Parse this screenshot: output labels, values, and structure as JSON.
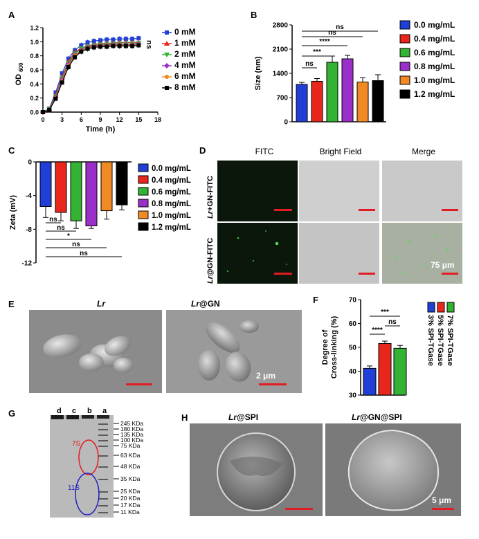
{
  "panels": {
    "A": "A",
    "B": "B",
    "C": "C",
    "D": "D",
    "E": "E",
    "F": "F",
    "G": "G",
    "H": "H"
  },
  "colors": {
    "blue": "#1f3fd6",
    "red": "#e8261c",
    "green": "#33b233",
    "purple": "#9b30c8",
    "orange": "#f08a24",
    "black": "#000000",
    "scale_red": "#e31b23",
    "fitc_dark": "#0a150a",
    "bright": "#cccccc",
    "merge": "#a8b0a4",
    "sem_bg": "#8a8a8a",
    "gel_bg": "#b8b8b8",
    "ellipse_red": "#e31b23",
    "ellipse_blue": "#2020c0"
  },
  "chart_data": [
    {
      "id": "A",
      "type": "line",
      "xlabel": "Time (h)",
      "ylabel": "OD",
      "ylabel_sub": "600",
      "xlim": [
        0,
        18
      ],
      "ylim": [
        0.0,
        1.2
      ],
      "xticks": [
        "0",
        "3",
        "6",
        "9",
        "12",
        "15",
        "18"
      ],
      "yticks": [
        "0.0",
        "0.2",
        "0.4",
        "0.6",
        "0.8",
        "1.0",
        "1.2"
      ],
      "x": [
        0,
        1,
        2,
        3,
        4,
        5,
        6,
        7,
        8,
        9,
        10,
        11,
        12,
        13,
        14,
        15
      ],
      "series": [
        {
          "name": "0 mM",
          "color": "#1f3fd6",
          "marker": "square",
          "values": [
            0.0,
            0.05,
            0.28,
            0.55,
            0.76,
            0.88,
            0.95,
            0.99,
            1.01,
            1.02,
            1.03,
            1.03,
            1.04,
            1.04,
            1.04,
            1.05
          ]
        },
        {
          "name": "1 mM",
          "color": "#e8261c",
          "marker": "triangle-up",
          "values": [
            0.0,
            0.04,
            0.24,
            0.5,
            0.72,
            0.85,
            0.91,
            0.94,
            0.96,
            0.97,
            0.98,
            0.98,
            0.99,
            0.99,
            0.99,
            0.99
          ]
        },
        {
          "name": "2 mM",
          "color": "#33b233",
          "marker": "triangle-down",
          "values": [
            0.0,
            0.04,
            0.22,
            0.48,
            0.7,
            0.83,
            0.9,
            0.93,
            0.95,
            0.96,
            0.96,
            0.97,
            0.97,
            0.97,
            0.97,
            0.98
          ]
        },
        {
          "name": "4 mM",
          "color": "#9b30c8",
          "marker": "diamond",
          "values": [
            0.0,
            0.03,
            0.21,
            0.46,
            0.68,
            0.81,
            0.88,
            0.92,
            0.94,
            0.95,
            0.95,
            0.96,
            0.96,
            0.96,
            0.96,
            0.97
          ]
        },
        {
          "name": "6 mM",
          "color": "#f08a24",
          "marker": "circle",
          "values": [
            0.0,
            0.03,
            0.2,
            0.44,
            0.66,
            0.8,
            0.87,
            0.91,
            0.93,
            0.94,
            0.94,
            0.95,
            0.95,
            0.95,
            0.95,
            0.96
          ]
        },
        {
          "name": "8 mM",
          "color": "#000000",
          "marker": "square",
          "values": [
            0.0,
            0.03,
            0.19,
            0.42,
            0.64,
            0.78,
            0.86,
            0.9,
            0.92,
            0.93,
            0.93,
            0.94,
            0.94,
            0.94,
            0.94,
            0.95
          ]
        }
      ],
      "annotations": [
        "ns"
      ]
    },
    {
      "id": "B",
      "type": "bar",
      "ylabel": "Size (nm)",
      "ylim": [
        0,
        2800
      ],
      "yticks": [
        "0",
        "700",
        "1400",
        "2100",
        "2800"
      ],
      "categories": [
        "0.0 mg/mL",
        "0.4 mg/mL",
        "0.6 mg/mL",
        "0.8 mg/mL",
        "1.0 mg/mL",
        "1.2 mg/mL"
      ],
      "colors": [
        "#1f3fd6",
        "#e8261c",
        "#33b233",
        "#9b30c8",
        "#f08a24",
        "#000000"
      ],
      "values": [
        1080,
        1170,
        1720,
        1820,
        1150,
        1190
      ],
      "errors": [
        60,
        80,
        180,
        100,
        120,
        170
      ],
      "significance": [
        {
          "from": 0,
          "to": 1,
          "label": "ns"
        },
        {
          "from": 0,
          "to": 2,
          "label": "***"
        },
        {
          "from": 0,
          "to": 3,
          "label": "****"
        },
        {
          "from": 0,
          "to": 4,
          "label": "ns"
        },
        {
          "from": 0,
          "to": 5,
          "label": "ns"
        }
      ]
    },
    {
      "id": "C",
      "type": "bar",
      "ylabel": "Zeta (mV)",
      "ylim": [
        -12,
        0
      ],
      "yticks": [
        "0",
        "-4",
        "-8",
        "-12"
      ],
      "categories": [
        "0.0 mg/mL",
        "0.4 mg/mL",
        "0.6 mg/mL",
        "0.8 mg/mL",
        "1.0 mg/mL",
        "1.2 mg/mL"
      ],
      "colors": [
        "#1f3fd6",
        "#e8261c",
        "#33b233",
        "#9b30c8",
        "#f08a24",
        "#000000"
      ],
      "values": [
        -5.3,
        -6.0,
        -7.0,
        -7.6,
        -5.8,
        -5.1
      ],
      "errors": [
        1.3,
        1.0,
        0.9,
        0.3,
        1.0,
        0.6
      ],
      "significance": [
        {
          "from": 0,
          "to": 1,
          "label": "ns"
        },
        {
          "from": 0,
          "to": 2,
          "label": "ns"
        },
        {
          "from": 0,
          "to": 3,
          "label": "*"
        },
        {
          "from": 0,
          "to": 4,
          "label": "ns"
        },
        {
          "from": 0,
          "to": 5,
          "label": "ns"
        }
      ]
    },
    {
      "id": "F",
      "type": "bar",
      "ylabel": "Degree of Cross-linking (%)",
      "ylabel_lines": [
        "Degree of",
        "Cross-linking (%)"
      ],
      "ylim": [
        30,
        70
      ],
      "yticks": [
        "30",
        "40",
        "50",
        "60",
        "70"
      ],
      "categories": [
        "3% SPI-TGase",
        "5% SPI-TGase",
        "7% SPI-TGase"
      ],
      "colors": [
        "#1f3fd6",
        "#e8261c",
        "#33b233"
      ],
      "values": [
        41.2,
        51.6,
        49.6
      ],
      "errors": [
        1.0,
        1.0,
        1.2
      ],
      "significance": [
        {
          "from": 0,
          "to": 1,
          "label": "****"
        },
        {
          "from": 1,
          "to": 2,
          "label": "ns"
        },
        {
          "from": 0,
          "to": 2,
          "label": "***"
        }
      ]
    }
  ],
  "panel_d": {
    "col_headers": [
      "FITC",
      "Bright Field",
      "Merge"
    ],
    "row_labels": [
      {
        "italic": "Lr",
        "rest": "+GN-FITC"
      },
      {
        "italic": "Lr",
        "rest": "@GN-FITC"
      }
    ],
    "scale_label": "75 μm"
  },
  "panel_e": {
    "titles": [
      {
        "italic": "Lr",
        "rest": ""
      },
      {
        "italic": "Lr",
        "rest": "@GN"
      }
    ],
    "scale_label": "2 μm"
  },
  "panel_g": {
    "lane_labels": [
      "d",
      "c",
      "b",
      "a"
    ],
    "markers": [
      "245 KDa",
      "180 KDa",
      "135 KDa",
      "100 KDa",
      "75 KDa",
      "63 KDa",
      "48 KDa",
      "35 KDa",
      "25 KDa",
      "20 KDa",
      "17 KDa",
      "11 KDa"
    ],
    "band_7s": "7S",
    "band_11s": "11S"
  },
  "panel_h": {
    "titles": [
      {
        "italic": "Lr",
        "rest": "@SPI"
      },
      {
        "italic": "Lr",
        "rest": "@GN@SPI"
      }
    ],
    "scale_label": "5 μm"
  }
}
